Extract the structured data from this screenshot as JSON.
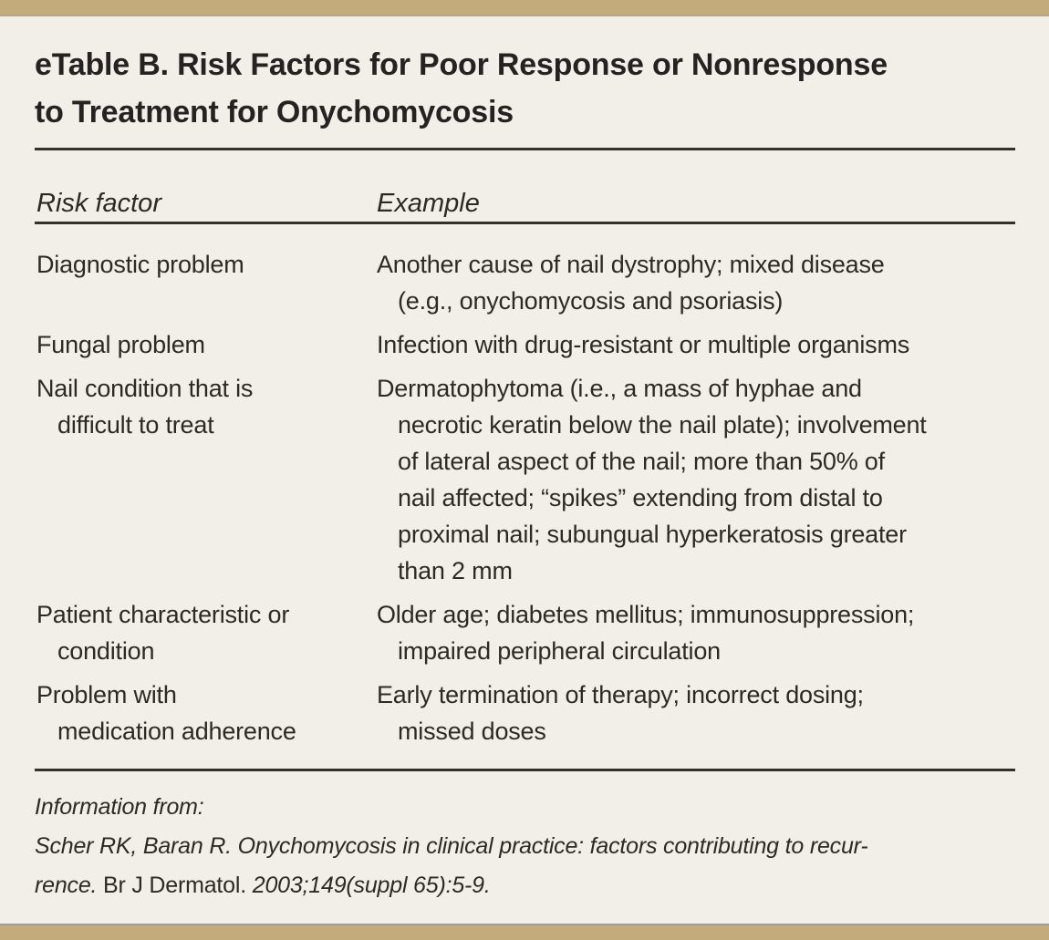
{
  "theme": {
    "background_color": "#f2efe8",
    "accent_bar_color": "#c3ab7b",
    "text_color": "#2e2925",
    "rule_color": "#35302c"
  },
  "table": {
    "title_lines": [
      "eTable B. Risk Factors for Poor Response or Nonresponse",
      "to Treatment for Onychomycosis"
    ],
    "columns": [
      {
        "label": "Risk factor"
      },
      {
        "label": "Example"
      }
    ],
    "rows": [
      {
        "risk_factor_lines": [
          "Diagnostic problem"
        ],
        "example_lines": [
          "Another cause of nail dystrophy; mixed disease",
          "(e.g., onychomycosis and psoriasis)"
        ]
      },
      {
        "risk_factor_lines": [
          "Fungal problem"
        ],
        "example_lines": [
          "Infection with drug-resistant or multiple organisms"
        ]
      },
      {
        "risk_factor_lines": [
          "Nail condition that is",
          "difficult to treat"
        ],
        "example_lines": [
          "Dermatophytoma (i.e., a mass of hyphae and",
          "necrotic keratin below the nail plate); involvement",
          "of lateral aspect of the nail; more than 50% of",
          "nail affected; “spikes” extending from distal to",
          "proximal nail; subungual hyperkeratosis greater",
          "than 2 mm"
        ]
      },
      {
        "risk_factor_lines": [
          "Patient characteristic or",
          "condition"
        ],
        "example_lines": [
          "Older age; diabetes mellitus; immunosuppression;",
          "impaired peripheral circulation"
        ]
      },
      {
        "risk_factor_lines": [
          "Problem with",
          "medication adherence"
        ],
        "example_lines": [
          "Early termination of therapy; incorrect dosing;",
          "missed doses"
        ]
      }
    ]
  },
  "footer": {
    "lead_in": "Information from:",
    "citation_line1": "Scher RK, Baran R. Onychomycosis in clinical practice: factors contributing to recur-",
    "citation_line2_italic_start": "rence. ",
    "citation_journal": "Br J Dermatol. ",
    "citation_line2_italic_end": "2003;149(suppl 65):5-9."
  }
}
